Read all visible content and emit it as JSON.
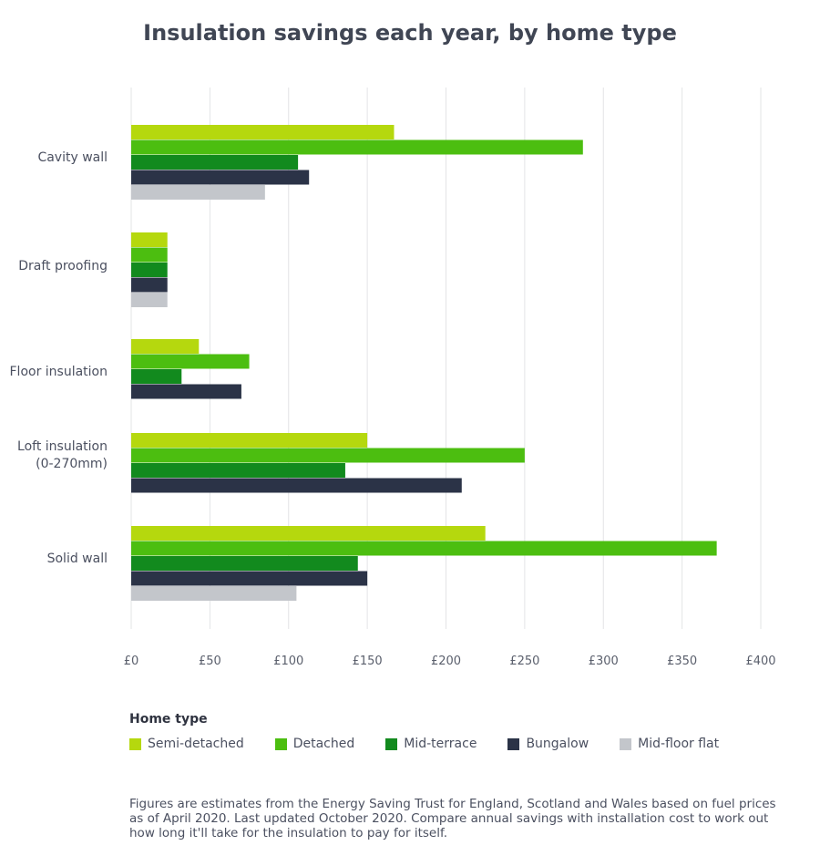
{
  "chart_data": {
    "type": "bar",
    "orientation": "horizontal",
    "title": "Insulation savings each year, by home type",
    "categories": [
      "Cavity wall",
      "Draft proofing",
      "Floor insulation",
      "Loft insulation\n(0-270mm)",
      "Solid wall"
    ],
    "series": [
      {
        "name": "Semi-detached",
        "color": "#b5d80e",
        "values": [
          167,
          23,
          43,
          150,
          225
        ]
      },
      {
        "name": "Detached",
        "color": "#4cbe10",
        "values": [
          287,
          23,
          75,
          250,
          372
        ]
      },
      {
        "name": "Mid-terrace",
        "color": "#128a1e",
        "values": [
          106,
          23,
          32,
          136,
          144
        ]
      },
      {
        "name": "Bungalow",
        "color": "#2b3347",
        "values": [
          113,
          23,
          70,
          210,
          150
        ]
      },
      {
        "name": "Mid-floor flat",
        "color": "#c3c6cb",
        "values": [
          85,
          23,
          null,
          null,
          105
        ]
      }
    ],
    "xlim": [
      0,
      400
    ],
    "x_ticks": [
      "£0",
      "£50",
      "£100",
      "£150",
      "£200",
      "£250",
      "£300",
      "£350",
      "£400"
    ],
    "grid": true,
    "legend": {
      "title": "Home type",
      "placement": "bottom"
    }
  },
  "footnote": "Figures are estimates from the Energy Saving Trust for England, Scotland and Wales based on fuel prices as of April 2020. Last updated October 2020. Compare annual savings with installation cost to work out how long it'll take for the insulation to pay for itself."
}
